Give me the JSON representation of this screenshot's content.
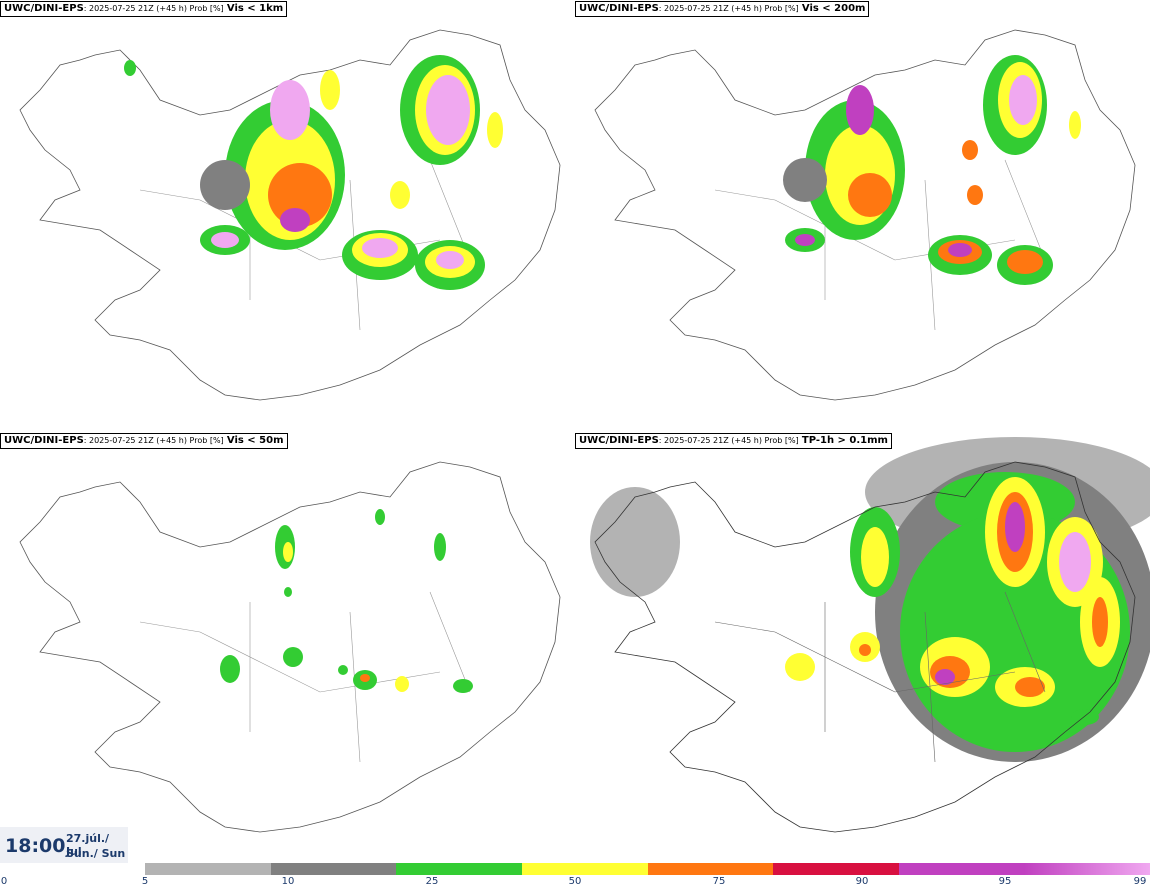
{
  "panels": [
    {
      "source": "UWC/DINI-EPS",
      "run": ": 2025-07-25 21Z (+45 h) Prob [%]",
      "variable": "Vis < 1km"
    },
    {
      "source": "UWC/DINI-EPS",
      "run": ": 2025-07-25 21Z (+45 h) Prob [%]",
      "variable": "Vis < 200m"
    },
    {
      "source": "UWC/DINI-EPS",
      "run": ": 2025-07-25 21Z (+45 h) Prob [%]",
      "variable": "Vis < 50m"
    },
    {
      "source": "UWC/DINI-EPS",
      "run": ": 2025-07-25 21Z (+45 h) Prob [%]",
      "variable": "TP-1h > 0.1mm"
    }
  ],
  "valid_time": {
    "time": "18:00",
    "date_line1": "27.júl./ Jul",
    "date_line2": "Sun./ Sun"
  },
  "legend": {
    "ticks": [
      "0",
      "5",
      "10",
      "25",
      "50",
      "75",
      "90",
      "95",
      "99"
    ],
    "colors": [
      "#b3b3b3",
      "#808080",
      "#33cc33",
      "#ffff33",
      "#ff7711",
      "#d81040",
      "#c040c0",
      "#f0a8f0"
    ]
  }
}
